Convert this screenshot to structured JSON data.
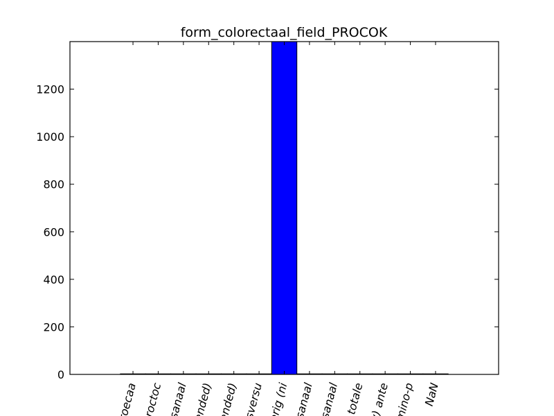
{
  "chart_data": {
    "type": "bar",
    "title": "form_colorectaal_field_PROCOK",
    "xlabel": "",
    "ylabel": "",
    "categories": [
      "roecaa",
      "roctoc",
      "sanaal",
      "ended)",
      "ended)",
      "sversu",
      "erig (ni",
      "sanaal",
      "sanaal",
      "totale",
      "v) ante",
      "mino-p",
      "NaN"
    ],
    "values": [
      0,
      0,
      0,
      0,
      0,
      0,
      1400,
      0,
      0,
      0,
      0,
      0,
      0
    ],
    "ylim": [
      0,
      1400
    ],
    "yticks": [
      0,
      200,
      400,
      600,
      800,
      1000,
      1200
    ],
    "bar_color": "#0000ff",
    "grid": false,
    "legend": false
  }
}
